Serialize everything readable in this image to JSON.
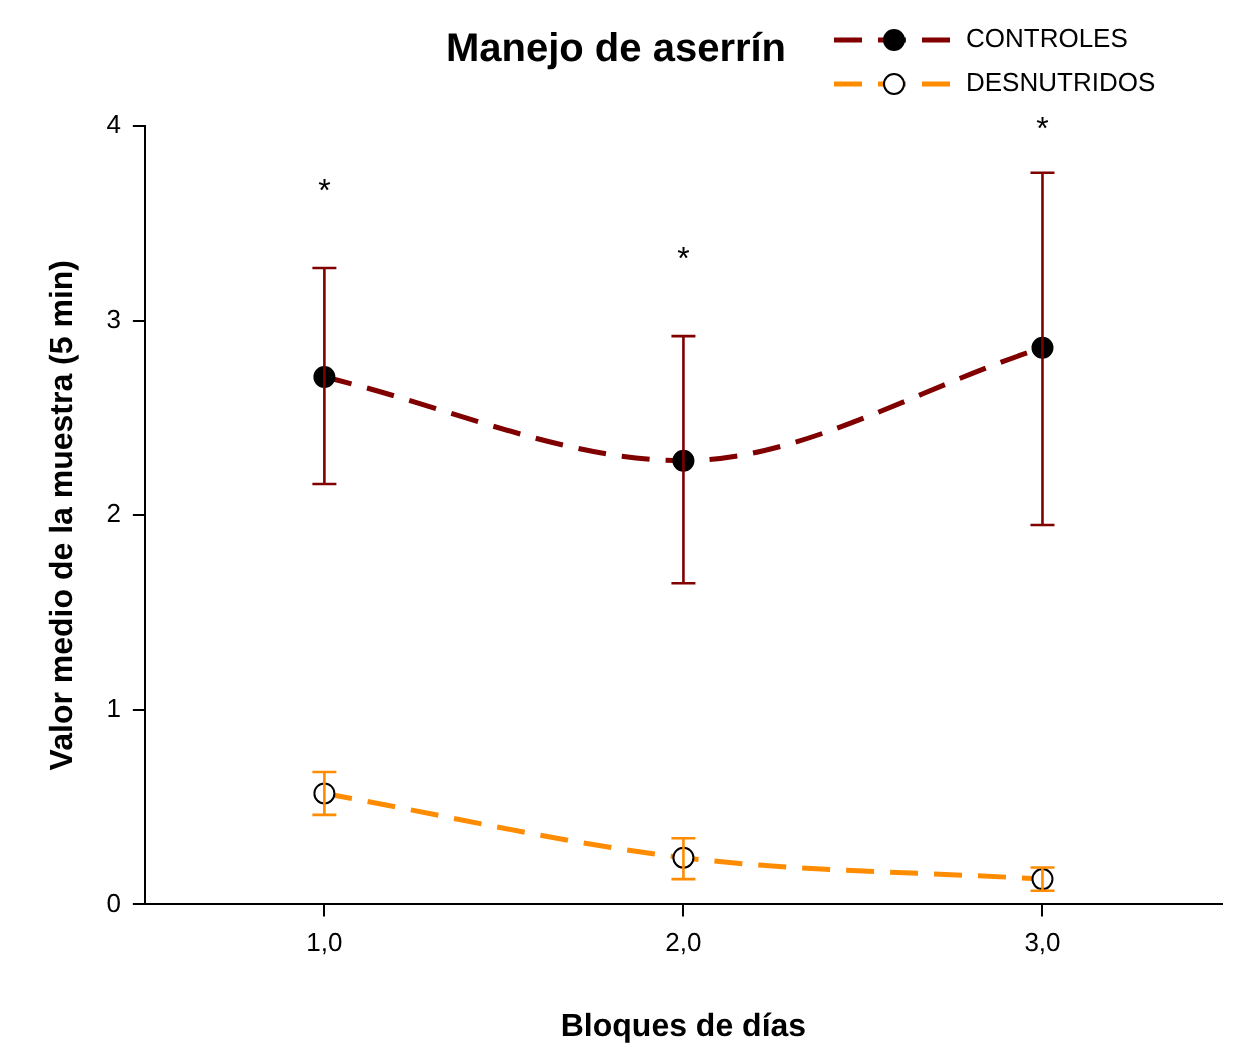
{
  "chart_data": {
    "type": "line",
    "title": "Manejo de aserrín",
    "xlabel": "Bloques de días",
    "ylabel": "Valor medio de la muestra (5 min)",
    "x": [
      1,
      2,
      3
    ],
    "series": [
      {
        "name": "CONTROLES",
        "color": "#800000",
        "values": [
          2.71,
          2.28,
          2.86
        ],
        "errors": [
          [
            2.16,
            3.27
          ],
          [
            1.65,
            2.92
          ],
          [
            1.95,
            3.76
          ]
        ]
      },
      {
        "name": "DESNUTRIDOS",
        "color": "#ff8c00",
        "values": [
          0.57,
          0.24,
          0.13
        ],
        "errors": [
          [
            0.46,
            0.68
          ],
          [
            0.13,
            0.34
          ],
          [
            0.07,
            0.19
          ]
        ]
      }
    ],
    "xlim": [
      0.5,
      3.5
    ],
    "xticks": [
      {
        "value": 1,
        "label": "1,0"
      },
      {
        "value": 2,
        "label": "2,0"
      },
      {
        "value": 3,
        "label": "3,0"
      }
    ],
    "ylim": [
      0,
      4
    ],
    "yticks": [
      0,
      1,
      2,
      3,
      4
    ],
    "annotations": [
      "*",
      "*",
      "*"
    ],
    "grid": false,
    "legend": "top right",
    "marker": "circle",
    "line_style": "dashed"
  }
}
